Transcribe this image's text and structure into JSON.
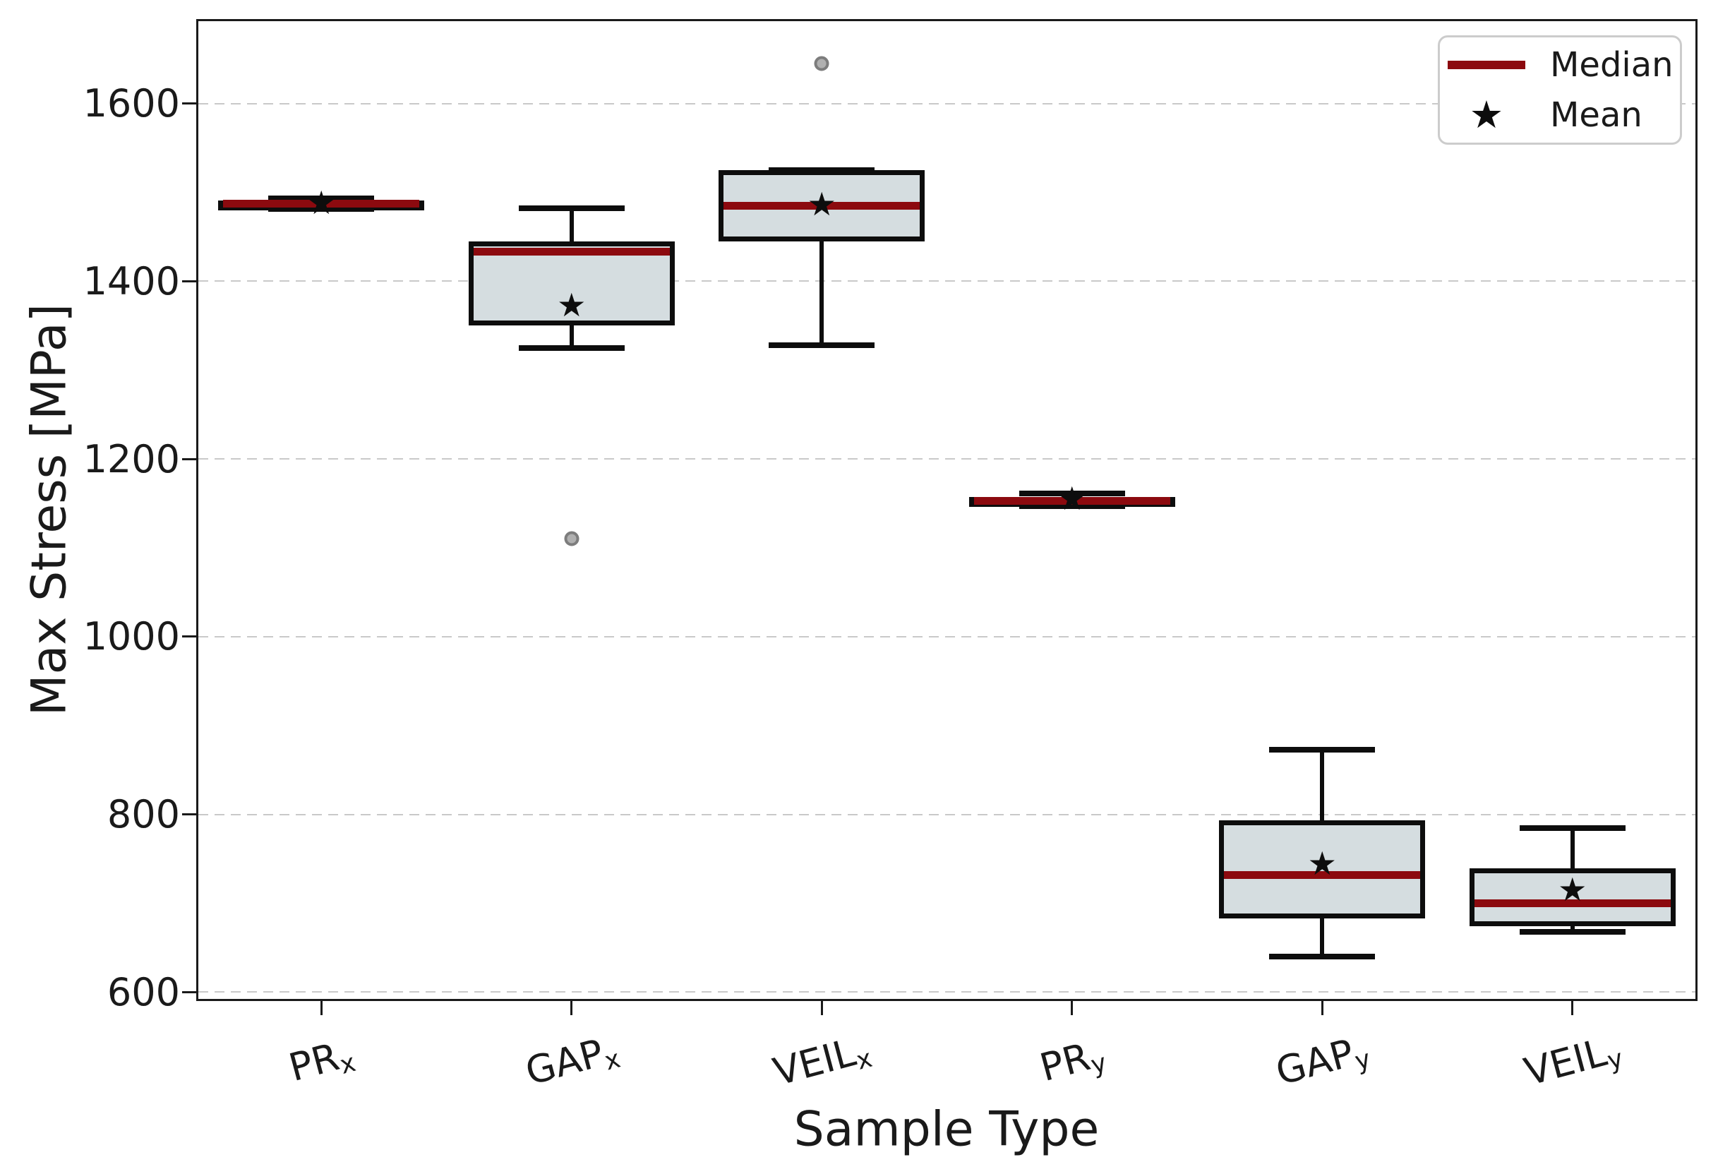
{
  "chart_data": {
    "type": "boxplot",
    "title": "",
    "xlabel": "Sample Type",
    "ylabel": "Max Stress [MPa]",
    "ylim": [
      590,
      1695
    ],
    "yticks": [
      600,
      800,
      1000,
      1200,
      1400,
      1600
    ],
    "grid": {
      "axis": "y",
      "style": "dashed",
      "color": "#c9c9c9"
    },
    "legend": {
      "position": "upper right",
      "items": [
        {
          "label": "Median",
          "marker": "line",
          "color": "#8c0a0f"
        },
        {
          "label": "Mean",
          "marker": "star",
          "color": "#0d0d0d",
          "glyph": "★"
        }
      ]
    },
    "categories": [
      {
        "text": "PR",
        "subscript": "x"
      },
      {
        "text": "GAP",
        "subscript": "x"
      },
      {
        "text": "VEIL",
        "subscript": "x"
      },
      {
        "text": "PR",
        "subscript": "y"
      },
      {
        "text": "GAP",
        "subscript": "y"
      },
      {
        "text": "VEIL",
        "subscript": "y"
      }
    ],
    "boxes": [
      {
        "label": "PR_x",
        "whisker_low": 1481,
        "q1": 1483,
        "median": 1487,
        "q3": 1491,
        "whisker_high": 1493,
        "mean": 1487,
        "outliers": []
      },
      {
        "label": "GAP_x",
        "whisker_low": 1325,
        "q1": 1350,
        "median": 1433,
        "q3": 1445,
        "whisker_high": 1482,
        "mean": 1372,
        "outliers": [
          1110
        ]
      },
      {
        "label": "VEIL_x",
        "whisker_low": 1328,
        "q1": 1445,
        "median": 1485,
        "q3": 1525,
        "whisker_high": 1525,
        "mean": 1485,
        "outliers": [
          1645
        ]
      },
      {
        "label": "PR_y",
        "whisker_low": 1147,
        "q1": 1150,
        "median": 1153,
        "q3": 1157,
        "whisker_high": 1161,
        "mean": 1154,
        "outliers": []
      },
      {
        "label": "GAP_y",
        "whisker_low": 640,
        "q1": 683,
        "median": 732,
        "q3": 793,
        "whisker_high": 873,
        "mean": 743,
        "outliers": []
      },
      {
        "label": "VEIL_y",
        "whisker_low": 668,
        "q1": 674,
        "median": 700,
        "q3": 739,
        "whisker_high": 785,
        "mean": 714,
        "outliers": []
      }
    ],
    "colors": {
      "box_fill": "#d5dde0",
      "box_edge": "#0d0d0d",
      "median": "#8c0a0f",
      "mean_marker": "#0d0d0d",
      "outlier_fill": "#b0b0b0",
      "outlier_edge": "#7d7d7d",
      "mean_glyph": "★"
    }
  }
}
